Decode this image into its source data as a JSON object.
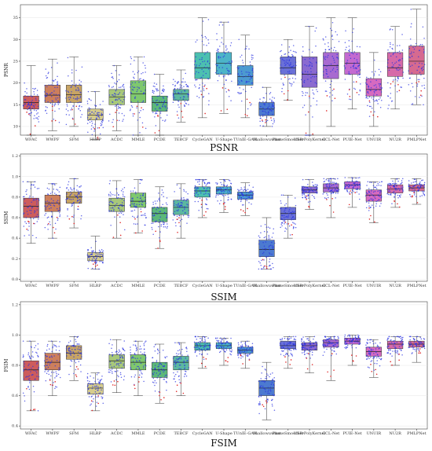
{
  "chart_data": [
    {
      "type": "box",
      "title": "PSNR",
      "ylabel": "PSNR",
      "ylim": [
        8,
        38
      ],
      "yticks": [
        10,
        15,
        20,
        25,
        30,
        35
      ],
      "categories": [
        "WFAC",
        "WWPF",
        "SFM",
        "HLRP",
        "ACDC",
        "MMLE",
        "PCDE",
        "TEBCF",
        "CycleGAN",
        "U-Shape",
        "TUnIE-GAN",
        "Shallowuwnet",
        "PhaseSmoother",
        "USR-PolyKernel",
        "CCL-Net",
        "PUIE-Net",
        "UNUIR",
        "NU2R",
        "PMLPNet"
      ],
      "colors": [
        "#cd5c5c",
        "#cd7f5c",
        "#c8a464",
        "#d6cd8c",
        "#a8c87a",
        "#7fc86e",
        "#5cb87a",
        "#5cb8a0",
        "#4cc0b0",
        "#4cb4c8",
        "#4c9ad0",
        "#4c7ad0",
        "#6a70d8",
        "#8a6ad0",
        "#a86ad0",
        "#c46ad0",
        "#d66ac0",
        "#d66aa8",
        "#d66a90"
      ],
      "stats": [
        {
          "q1": 14,
          "median": 15.5,
          "q3": 17,
          "min": 8,
          "max": 24
        },
        {
          "q1": 15.5,
          "median": 17.2,
          "q3": 19.5,
          "min": 9,
          "max": 25.5
        },
        {
          "q1": 15.5,
          "median": 17.3,
          "q3": 19.5,
          "min": 10,
          "max": 26
        },
        {
          "q1": 11.5,
          "median": 12.6,
          "q3": 14,
          "min": 7,
          "max": 18
        },
        {
          "q1": 15,
          "median": 16.8,
          "q3": 18.5,
          "min": 9,
          "max": 24
        },
        {
          "q1": 15.5,
          "median": 17.5,
          "q3": 20.5,
          "min": 8,
          "max": 26
        },
        {
          "q1": 13.5,
          "median": 15.5,
          "q3": 17,
          "min": 8,
          "max": 22
        },
        {
          "q1": 16,
          "median": 17.5,
          "q3": 18.5,
          "min": 11,
          "max": 23
        },
        {
          "q1": 21,
          "median": 23.5,
          "q3": 27,
          "min": 12,
          "max": 35
        },
        {
          "q1": 22,
          "median": 24.5,
          "q3": 27,
          "min": 13,
          "max": 34
        },
        {
          "q1": 19.5,
          "median": 21.5,
          "q3": 24,
          "min": 12,
          "max": 31
        },
        {
          "q1": 12.5,
          "median": 14,
          "q3": 15.5,
          "min": 10,
          "max": 19
        },
        {
          "q1": 22,
          "median": 23.5,
          "q3": 26,
          "min": 16,
          "max": 30
        },
        {
          "q1": 19,
          "median": 22,
          "q3": 26,
          "min": 8,
          "max": 33
        },
        {
          "q1": 21,
          "median": 24,
          "q3": 27,
          "min": 10,
          "max": 35
        },
        {
          "q1": 22,
          "median": 24.5,
          "q3": 27,
          "min": 14,
          "max": 35
        },
        {
          "q1": 17,
          "median": 18.5,
          "q3": 21,
          "min": 10,
          "max": 27
        },
        {
          "q1": 21.5,
          "median": 23.5,
          "q3": 27,
          "min": 14,
          "max": 33
        },
        {
          "q1": 22,
          "median": 25,
          "q3": 28.5,
          "min": 15,
          "max": 37
        }
      ]
    },
    {
      "type": "box",
      "title": "SSIM",
      "ylabel": "SSIM",
      "ylim": [
        -0.02,
        1.22
      ],
      "yticks": [
        0.0,
        0.2,
        0.4,
        0.6,
        0.8,
        1.0,
        1.2
      ],
      "categories": [
        "WFAC",
        "WWPF",
        "SFM",
        "HLRP",
        "ACDC",
        "MMLE",
        "PCDE",
        "TEBCF",
        "CycleGAN",
        "U-Shape",
        "TUnIE-GAN",
        "Shallowuwnet",
        "PhaseSmoother",
        "USR-PolyKernel",
        "CCL-Net",
        "PUIE-Net",
        "UNUIR",
        "NU2R",
        "PMLPNet"
      ],
      "colors": [
        "#cd5c5c",
        "#cd7f5c",
        "#c8a464",
        "#d6cd8c",
        "#a8c87a",
        "#7fc86e",
        "#5cb87a",
        "#5cb8a0",
        "#4cc0b0",
        "#4cb4c8",
        "#4c9ad0",
        "#4c7ad0",
        "#6a70d8",
        "#8a6ad0",
        "#a86ad0",
        "#c46ad0",
        "#d66ac0",
        "#d66aa8",
        "#d66a90"
      ],
      "stats": [
        {
          "q1": 0.6,
          "median": 0.71,
          "q3": 0.79,
          "min": 0.35,
          "max": 0.95
        },
        {
          "q1": 0.66,
          "median": 0.74,
          "q3": 0.82,
          "min": 0.4,
          "max": 0.93
        },
        {
          "q1": 0.74,
          "median": 0.8,
          "q3": 0.85,
          "min": 0.5,
          "max": 0.98
        },
        {
          "q1": 0.18,
          "median": 0.22,
          "q3": 0.26,
          "min": 0.1,
          "max": 0.42
        },
        {
          "q1": 0.66,
          "median": 0.72,
          "q3": 0.79,
          "min": 0.4,
          "max": 0.96
        },
        {
          "q1": 0.7,
          "median": 0.76,
          "q3": 0.84,
          "min": 0.45,
          "max": 0.97
        },
        {
          "q1": 0.56,
          "median": 0.64,
          "q3": 0.7,
          "min": 0.3,
          "max": 0.9
        },
        {
          "q1": 0.63,
          "median": 0.7,
          "q3": 0.77,
          "min": 0.4,
          "max": 0.93
        },
        {
          "q1": 0.8,
          "median": 0.86,
          "q3": 0.9,
          "min": 0.6,
          "max": 0.97
        },
        {
          "q1": 0.83,
          "median": 0.87,
          "q3": 0.9,
          "min": 0.65,
          "max": 0.97
        },
        {
          "q1": 0.78,
          "median": 0.82,
          "q3": 0.85,
          "min": 0.62,
          "max": 0.94
        },
        {
          "q1": 0.22,
          "median": 0.29,
          "q3": 0.38,
          "min": 0.1,
          "max": 0.6
        },
        {
          "q1": 0.58,
          "median": 0.64,
          "q3": 0.7,
          "min": 0.4,
          "max": 0.82
        },
        {
          "q1": 0.84,
          "median": 0.87,
          "q3": 0.9,
          "min": 0.68,
          "max": 0.97
        },
        {
          "q1": 0.85,
          "median": 0.89,
          "q3": 0.93,
          "min": 0.6,
          "max": 0.98
        },
        {
          "q1": 0.88,
          "median": 0.92,
          "q3": 0.95,
          "min": 0.7,
          "max": 0.99
        },
        {
          "q1": 0.76,
          "median": 0.82,
          "q3": 0.87,
          "min": 0.55,
          "max": 0.95
        },
        {
          "q1": 0.84,
          "median": 0.88,
          "q3": 0.92,
          "min": 0.7,
          "max": 0.98
        },
        {
          "q1": 0.86,
          "median": 0.89,
          "q3": 0.92,
          "min": 0.73,
          "max": 0.98
        }
      ]
    },
    {
      "type": "box",
      "title": "FSIM",
      "ylabel": "FSIM",
      "ylim": [
        0.38,
        1.22
      ],
      "yticks": [
        0.4,
        0.6,
        0.8,
        1.0,
        1.2
      ],
      "categories": [
        "WFAC",
        "WWPF",
        "SFM",
        "HLRP",
        "ACDC",
        "MMLE",
        "PCDE",
        "TEBCF",
        "CycleGAN",
        "U-Shape",
        "TUnIE-GAN",
        "Shallowuwnet",
        "PhaseSmoother",
        "USR-PolyKernel",
        "CCL-Net",
        "PUIE-Net",
        "UNUIR",
        "NU2R",
        "PMLPNet"
      ],
      "colors": [
        "#cd5c5c",
        "#cd7f5c",
        "#c8a464",
        "#d6cd8c",
        "#a8c87a",
        "#7fc86e",
        "#5cb87a",
        "#5cb8a0",
        "#4cc0b0",
        "#4cb4c8",
        "#4c9ad0",
        "#4c7ad0",
        "#6a70d8",
        "#8a6ad0",
        "#a86ad0",
        "#c46ad0",
        "#d66ac0",
        "#d66aa8",
        "#d66a90"
      ],
      "stats": [
        {
          "q1": 0.7,
          "median": 0.77,
          "q3": 0.83,
          "min": 0.5,
          "max": 0.96
        },
        {
          "q1": 0.77,
          "median": 0.82,
          "q3": 0.88,
          "min": 0.6,
          "max": 0.96
        },
        {
          "q1": 0.84,
          "median": 0.88,
          "q3": 0.93,
          "min": 0.7,
          "max": 0.99
        },
        {
          "q1": 0.61,
          "median": 0.65,
          "q3": 0.68,
          "min": 0.5,
          "max": 0.75
        },
        {
          "q1": 0.78,
          "median": 0.83,
          "q3": 0.87,
          "min": 0.62,
          "max": 0.97
        },
        {
          "q1": 0.77,
          "median": 0.82,
          "q3": 0.87,
          "min": 0.6,
          "max": 0.96
        },
        {
          "q1": 0.72,
          "median": 0.77,
          "q3": 0.82,
          "min": 0.55,
          "max": 0.94
        },
        {
          "q1": 0.77,
          "median": 0.82,
          "q3": 0.86,
          "min": 0.6,
          "max": 0.95
        },
        {
          "q1": 0.9,
          "median": 0.93,
          "q3": 0.95,
          "min": 0.78,
          "max": 0.99
        },
        {
          "q1": 0.91,
          "median": 0.93,
          "q3": 0.95,
          "min": 0.8,
          "max": 0.98
        },
        {
          "q1": 0.88,
          "median": 0.9,
          "q3": 0.92,
          "min": 0.78,
          "max": 0.96
        },
        {
          "q1": 0.6,
          "median": 0.65,
          "q3": 0.7,
          "min": 0.44,
          "max": 0.82
        },
        {
          "q1": 0.91,
          "median": 0.93,
          "q3": 0.96,
          "min": 0.78,
          "max": 0.99
        },
        {
          "q1": 0.9,
          "median": 0.93,
          "q3": 0.95,
          "min": 0.75,
          "max": 0.99
        },
        {
          "q1": 0.92,
          "median": 0.95,
          "q3": 0.97,
          "min": 0.7,
          "max": 0.99
        },
        {
          "q1": 0.94,
          "median": 0.96,
          "q3": 0.98,
          "min": 0.8,
          "max": 1.0
        },
        {
          "q1": 0.86,
          "median": 0.89,
          "q3": 0.92,
          "min": 0.72,
          "max": 0.97
        },
        {
          "q1": 0.91,
          "median": 0.94,
          "q3": 0.96,
          "min": 0.8,
          "max": 0.99
        },
        {
          "q1": 0.92,
          "median": 0.94,
          "q3": 0.96,
          "min": 0.82,
          "max": 0.99
        }
      ]
    }
  ]
}
